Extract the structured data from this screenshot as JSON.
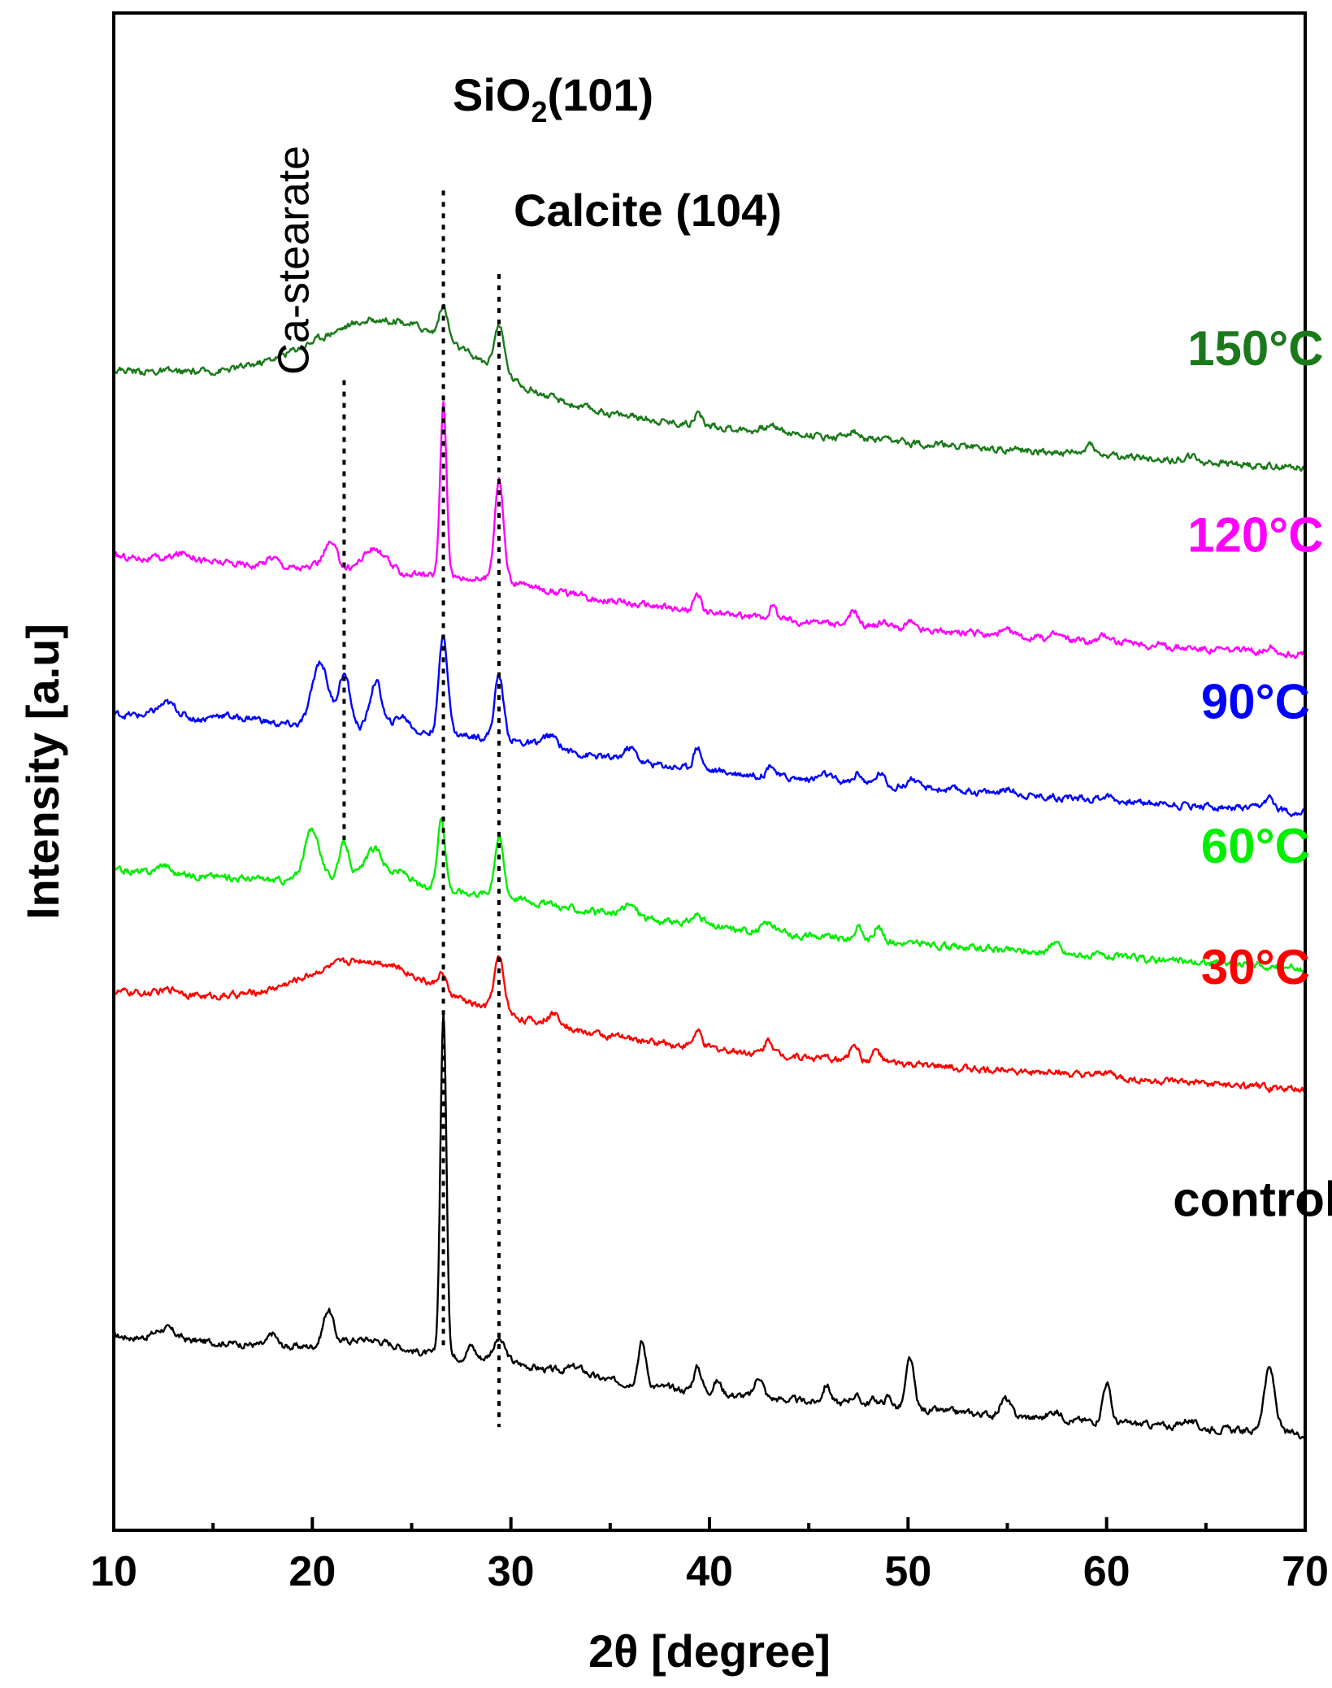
{
  "chart_data": {
    "type": "line",
    "title": "",
    "xlabel": "2θ [degree]",
    "ylabel": "Intensity [a.u]",
    "xlim": [
      10,
      70
    ],
    "ylim": [
      0,
      100
    ],
    "x_ticks": [
      10,
      20,
      30,
      40,
      50,
      60,
      70
    ],
    "x_tick_labels": [
      "10",
      "20",
      "30",
      "40",
      "50",
      "60",
      "70"
    ],
    "y_ticks_visible": false,
    "series": [
      {
        "name": "control",
        "color": "#000000",
        "base": 12.8,
        "label_at": [
          67.5,
          20.7
        ],
        "peaks": [
          [
            12.6,
            0.7,
            0.5
          ],
          [
            18.0,
            0.8,
            0.2
          ],
          [
            20.8,
            2.3,
            0.25
          ],
          [
            22.8,
            0.8,
            1.5
          ],
          [
            26.6,
            22.6,
            0.15
          ],
          [
            28.0,
            0.8,
            0.2
          ],
          [
            29.4,
            1.3,
            0.3
          ],
          [
            33.3,
            0.5,
            0.5
          ],
          [
            36.6,
            2.8,
            0.2
          ],
          [
            39.4,
            1.6,
            0.2
          ],
          [
            40.4,
            0.8,
            0.2
          ],
          [
            42.5,
            1.4,
            0.2
          ],
          [
            45.9,
            1.2,
            0.2
          ],
          [
            47.3,
            0.6,
            0.3
          ],
          [
            48.3,
            0.5,
            0.2
          ],
          [
            49.0,
            0.7,
            0.2
          ],
          [
            50.1,
            3.3,
            0.2
          ],
          [
            54.9,
            1.1,
            0.25
          ],
          [
            57.4,
            0.5,
            0.3
          ],
          [
            60.0,
            2.6,
            0.2
          ],
          [
            64.1,
            0.5,
            0.3
          ],
          [
            68.2,
            4.2,
            0.28
          ]
        ]
      },
      {
        "name": "30°C",
        "color": "#ff0000",
        "base": 35.5,
        "label_at": [
          67.5,
          36.0
        ],
        "peaks": [
          [
            13.0,
            0.4,
            0.5
          ],
          [
            22.8,
            3.1,
            3.0
          ],
          [
            26.5,
            1.1,
            0.2
          ],
          [
            29.4,
            3.5,
            0.25
          ],
          [
            32.2,
            0.8,
            0.4
          ],
          [
            39.4,
            1.0,
            0.2
          ],
          [
            43.0,
            1.0,
            0.2
          ],
          [
            47.3,
            1.2,
            0.2
          ],
          [
            48.4,
            0.8,
            0.2
          ],
          [
            55.0,
            0.3,
            0.3
          ],
          [
            57.4,
            0.3,
            0.3
          ],
          [
            60.0,
            0.4,
            0.3
          ]
        ]
      },
      {
        "name": "60°C",
        "color": "#00ee00",
        "base": 43.5,
        "label_at": [
          67.5,
          44.0
        ],
        "peaks": [
          [
            12.5,
            0.6,
            0.3
          ],
          [
            20.0,
            3.5,
            0.4
          ],
          [
            21.6,
            2.6,
            0.3
          ],
          [
            23.1,
            2.4,
            0.5
          ],
          [
            24.5,
            1.0,
            0.5
          ],
          [
            26.5,
            4.8,
            0.2
          ],
          [
            29.4,
            3.8,
            0.22
          ],
          [
            36.0,
            0.8,
            0.4
          ],
          [
            39.4,
            0.7,
            0.3
          ],
          [
            43.0,
            0.6,
            0.3
          ],
          [
            47.5,
            0.8,
            0.2
          ],
          [
            48.5,
            1.0,
            0.2
          ],
          [
            57.4,
            0.8,
            0.2
          ]
        ]
      },
      {
        "name": "90°C",
        "color": "#0000ff",
        "base": 53.8,
        "label_at": [
          67.5,
          53.5
        ],
        "peaks": [
          [
            12.7,
            0.9,
            0.5
          ],
          [
            15.5,
            0.4,
            0.5
          ],
          [
            17.0,
            0.3,
            0.5
          ],
          [
            20.4,
            4.3,
            0.4
          ],
          [
            21.6,
            3.5,
            0.3
          ],
          [
            23.2,
            3.2,
            0.3
          ],
          [
            24.5,
            1.0,
            0.4
          ],
          [
            26.6,
            6.6,
            0.22
          ],
          [
            29.4,
            4.1,
            0.22
          ],
          [
            32.0,
            0.8,
            0.4
          ],
          [
            36.0,
            0.9,
            0.3
          ],
          [
            39.4,
            1.5,
            0.2
          ],
          [
            43.1,
            0.8,
            0.2
          ],
          [
            45.8,
            0.4,
            0.3
          ],
          [
            47.5,
            0.7,
            0.2
          ],
          [
            48.6,
            0.8,
            0.2
          ],
          [
            50.2,
            0.6,
            0.2
          ],
          [
            55.0,
            0.3,
            0.3
          ],
          [
            60.0,
            0.3,
            0.3
          ],
          [
            68.2,
            0.7,
            0.3
          ]
        ]
      },
      {
        "name": "120°C",
        "color": "#ff00ff",
        "base": 64.2,
        "label_at": [
          67.5,
          64.5
        ],
        "peaks": [
          [
            13.6,
            0.5,
            0.5
          ],
          [
            18.0,
            0.6,
            0.3
          ],
          [
            20.9,
            1.7,
            0.35
          ],
          [
            23.1,
            1.5,
            0.6
          ],
          [
            26.6,
            11.5,
            0.16
          ],
          [
            29.4,
            6.7,
            0.22
          ],
          [
            39.4,
            1.0,
            0.2
          ],
          [
            43.2,
            0.8,
            0.2
          ],
          [
            47.3,
            1.0,
            0.2
          ],
          [
            48.8,
            0.4,
            0.3
          ],
          [
            50.1,
            0.5,
            0.2
          ],
          [
            55.0,
            0.3,
            0.3
          ],
          [
            57.5,
            0.3,
            0.3
          ],
          [
            60.0,
            0.5,
            0.3
          ],
          [
            68.2,
            0.4,
            0.3
          ]
        ]
      },
      {
        "name": "150°C",
        "color": "#1a7a1a",
        "base": 76.5,
        "label_at": [
          67.5,
          76.8
        ],
        "peaks": [
          [
            23.8,
            4.4,
            3.8
          ],
          [
            26.6,
            2.2,
            0.22
          ],
          [
            29.4,
            3.0,
            0.25
          ],
          [
            39.4,
            0.8,
            0.2
          ],
          [
            43.2,
            0.4,
            0.4
          ],
          [
            47.2,
            0.5,
            0.3
          ],
          [
            59.2,
            0.8,
            0.2
          ],
          [
            64.2,
            0.3,
            0.3
          ]
        ]
      }
    ],
    "reference_lines": [
      {
        "label": "Ca-stearate",
        "x": 21.6,
        "y_top": 75.8,
        "y_bottom": 45.5
      },
      {
        "label": "SiO2(101)",
        "x": 26.6,
        "y_top": 88.3,
        "y_bottom": 11.9
      },
      {
        "label": "Calcite (104)",
        "x": 29.4,
        "y_top": 82.8,
        "y_bottom": 6.8
      }
    ]
  },
  "annotations": {
    "ca_stearate": "Ca-stearate",
    "sio2_main": "SiO",
    "sio2_sub": "2",
    "sio2_tail": "(101)",
    "calcite": "Calcite (104)"
  }
}
